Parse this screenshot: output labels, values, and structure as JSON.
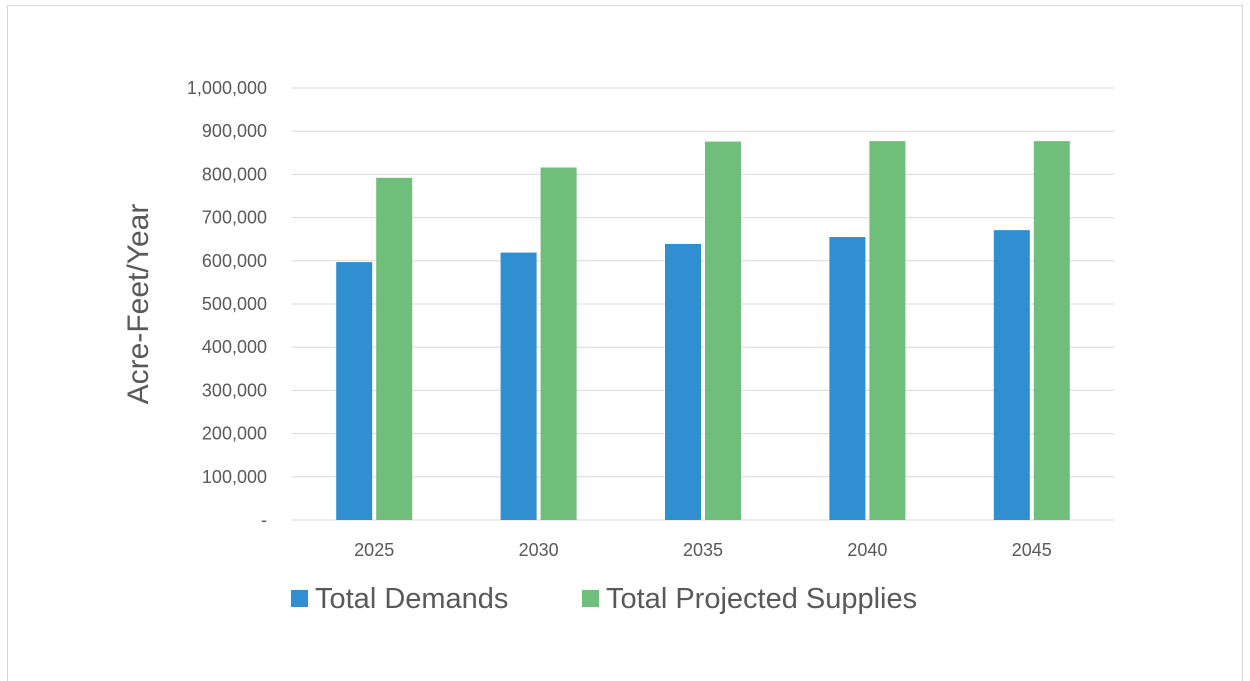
{
  "chart_data": {
    "type": "bar",
    "categories": [
      "2025",
      "2030",
      "2035",
      "2040",
      "2045"
    ],
    "series": [
      {
        "name": "Total Demands",
        "values": [
          597000,
          619000,
          639000,
          655000,
          671000
        ],
        "color": "#2f8fd0"
      },
      {
        "name": "Total Projected Supplies",
        "values": [
          792000,
          816000,
          876000,
          877000,
          877000
        ],
        "color": "#6fbf7b"
      }
    ],
    "ylabel": "Acre-Feet/Year",
    "xlabel": "",
    "ylim": [
      0,
      1000000
    ],
    "yticks": [
      {
        "value": 0,
        "label": "-"
      },
      {
        "value": 100000,
        "label": "100,000"
      },
      {
        "value": 200000,
        "label": "200,000"
      },
      {
        "value": 300000,
        "label": "300,000"
      },
      {
        "value": 400000,
        "label": "400,000"
      },
      {
        "value": 500000,
        "label": "500,000"
      },
      {
        "value": 600000,
        "label": "600,000"
      },
      {
        "value": 700000,
        "label": "700,000"
      },
      {
        "value": 800000,
        "label": "800,000"
      },
      {
        "value": 900000,
        "label": "900,000"
      },
      {
        "value": 1000000,
        "label": "1,000,000"
      }
    ],
    "grid": true,
    "legend": "bottom",
    "gridColor": "#d9d9d9",
    "textColor": "#595959"
  }
}
